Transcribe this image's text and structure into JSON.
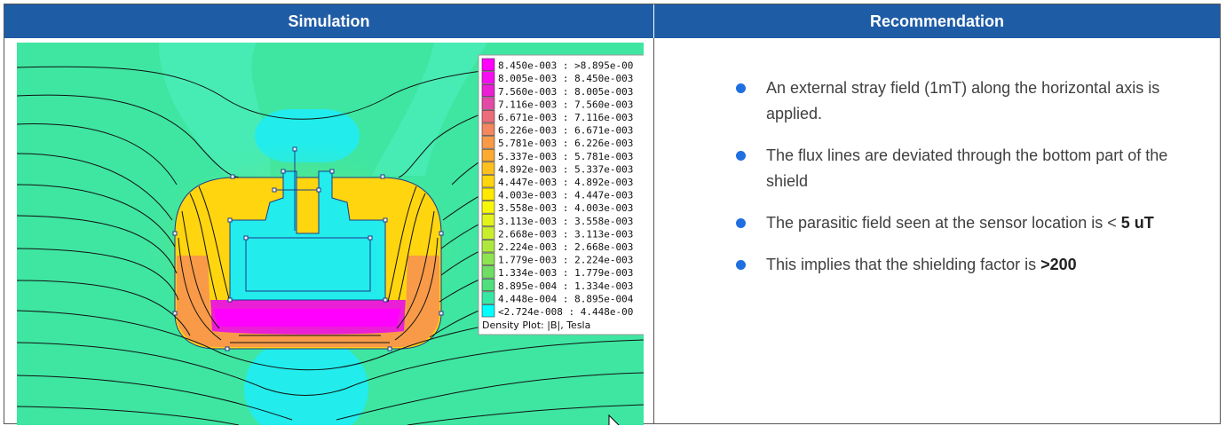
{
  "headers": {
    "simulation": "Simulation",
    "recommendation": "Recommendation"
  },
  "legend": {
    "caption": "Density Plot: |B|, Tesla",
    "rows": [
      {
        "label": "8.450e-003 : >8.895e-00",
        "color": "#ff00ff"
      },
      {
        "label": "8.005e-003 : 8.450e-003",
        "color": "#f50ef0"
      },
      {
        "label": "7.560e-003 : 8.005e-003",
        "color": "#eb1fd6"
      },
      {
        "label": "7.116e-003 : 7.560e-003",
        "color": "#e34aa6"
      },
      {
        "label": "6.671e-003 : 7.116e-003",
        "color": "#ec6c7c"
      },
      {
        "label": "6.226e-003 : 6.671e-003",
        "color": "#f38760"
      },
      {
        "label": "5.781e-003 : 6.226e-003",
        "color": "#f89a48"
      },
      {
        "label": "5.337e-003 : 5.781e-003",
        "color": "#fbab32"
      },
      {
        "label": "4.892e-003 : 5.337e-003",
        "color": "#fdc01e"
      },
      {
        "label": "4.447e-003 : 4.892e-003",
        "color": "#fed50f"
      },
      {
        "label": "4.003e-003 : 4.447e-003",
        "color": "#ffe903"
      },
      {
        "label": "3.558e-003 : 4.003e-003",
        "color": "#f7f70a"
      },
      {
        "label": "3.113e-003 : 3.558e-003",
        "color": "#e2f31c"
      },
      {
        "label": "2.668e-003 : 3.113e-003",
        "color": "#c9ee2e"
      },
      {
        "label": "2.224e-003 : 2.668e-003",
        "color": "#aee83f"
      },
      {
        "label": "1.779e-003 : 2.224e-003",
        "color": "#8fe250"
      },
      {
        "label": "1.334e-003 : 1.779e-003",
        "color": "#6fde62"
      },
      {
        "label": "8.895e-004 : 1.334e-003",
        "color": "#51de7c"
      },
      {
        "label": "4.448e-004 : 8.895e-004",
        "color": "#37e8a4"
      },
      {
        "label": "<2.724e-008 : 4.448e-00",
        "color": "#00ffff"
      }
    ]
  },
  "bullets": [
    {
      "text": "An external stray field (1mT) along the horizontal axis is applied.",
      "bold": ""
    },
    {
      "text": "The flux lines are deviated through the bottom part of the shield",
      "bold": ""
    },
    {
      "text": "The parasitic field seen at the sensor location is < ",
      "bold": "5 uT"
    },
    {
      "text": "This implies that the shielding factor is ",
      "bold": ">200"
    }
  ],
  "colors": {
    "header_bg": "#1f5ca6",
    "bullet": "#1f6fe0",
    "field_bg": "#3ee6a2",
    "field_cyan": "#22ecec"
  }
}
